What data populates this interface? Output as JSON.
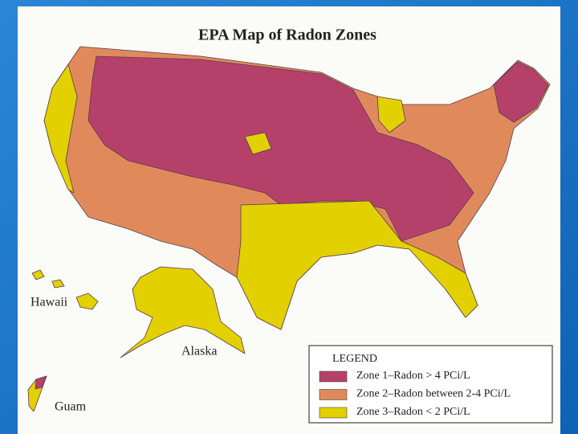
{
  "title": "EPA Map of Radon Zones",
  "labels": [
    "Hawaii",
    "Alaska",
    "Guam"
  ],
  "legend": {
    "title": "LEGEND",
    "items": [
      {
        "label": "Zone 1–Radon  >  4 PCi/L",
        "color": "#b5416b"
      },
      {
        "label": "Zone 2–Radon between 2-4 PCi/L",
        "color": "#e08a5c"
      },
      {
        "label": "Zone 3–Radon  <  2 PCi/L",
        "color": "#e2d000"
      }
    ]
  }
}
